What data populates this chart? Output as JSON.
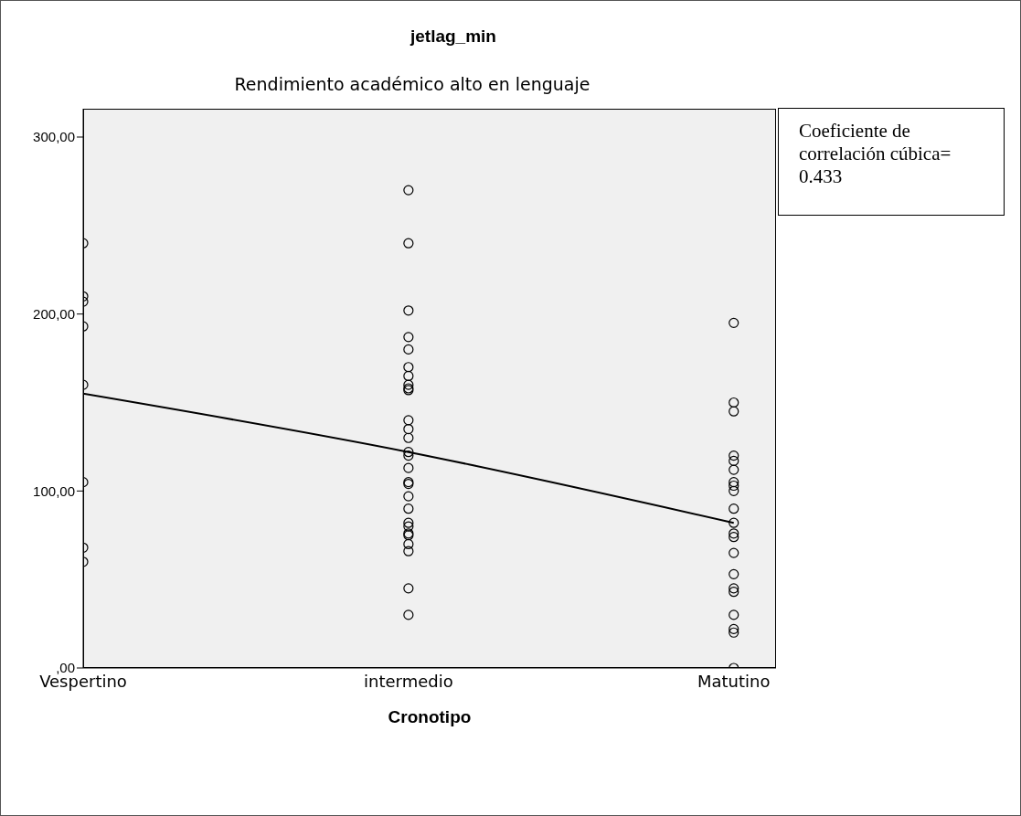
{
  "chart_data": {
    "type": "scatter",
    "title": "jetlag_min",
    "subtitle": "Rendimiento académico alto en lenguaje",
    "xlabel": "Cronotipo",
    "annotations": [
      "Coeficiente de correlación cúbica= 0.433"
    ],
    "categories": [
      "Vespertino",
      "intermedio",
      "Matutino"
    ],
    "ylim": [
      0,
      316
    ],
    "yticks": [
      {
        "value": 0,
        "label": ",00"
      },
      {
        "value": 100,
        "label": "100,00"
      },
      {
        "value": 200,
        "label": "200,00"
      },
      {
        "value": 300,
        "label": "300,00"
      }
    ],
    "grid": false,
    "legend": false,
    "marker": "circle",
    "series": [
      {
        "type": "scatter",
        "color": "#000000",
        "x": [
          "Vespertino",
          "Vespertino",
          "Vespertino",
          "Vespertino",
          "Vespertino",
          "Vespertino",
          "Vespertino",
          "Vespertino",
          "intermedio",
          "intermedio",
          "intermedio",
          "intermedio",
          "intermedio",
          "intermedio",
          "intermedio",
          "intermedio",
          "intermedio",
          "intermedio",
          "intermedio",
          "intermedio",
          "intermedio",
          "intermedio",
          "intermedio",
          "intermedio",
          "intermedio",
          "intermedio",
          "intermedio",
          "intermedio",
          "intermedio",
          "intermedio",
          "intermedio",
          "intermedio",
          "intermedio",
          "intermedio",
          "intermedio",
          "intermedio",
          "Matutino",
          "Matutino",
          "Matutino",
          "Matutino",
          "Matutino",
          "Matutino",
          "Matutino",
          "Matutino",
          "Matutino",
          "Matutino",
          "Matutino",
          "Matutino",
          "Matutino",
          "Matutino",
          "Matutino",
          "Matutino",
          "Matutino",
          "Matutino",
          "Matutino",
          "Matutino",
          "Matutino"
        ],
        "values": [
          240,
          210,
          207,
          193,
          160,
          105,
          68,
          60,
          270,
          240,
          202,
          187,
          180,
          170,
          165,
          160,
          158,
          157,
          140,
          135,
          130,
          122,
          120,
          113,
          105,
          104,
          97,
          90,
          82,
          80,
          76,
          75,
          70,
          66,
          45,
          30,
          195,
          150,
          145,
          120,
          117,
          112,
          105,
          103,
          100,
          90,
          82,
          76,
          74,
          65,
          53,
          45,
          43,
          30,
          22,
          20,
          0
        ]
      },
      {
        "type": "line",
        "color": "#000000",
        "marker": "none",
        "values": [
          155,
          122,
          82
        ]
      }
    ]
  }
}
